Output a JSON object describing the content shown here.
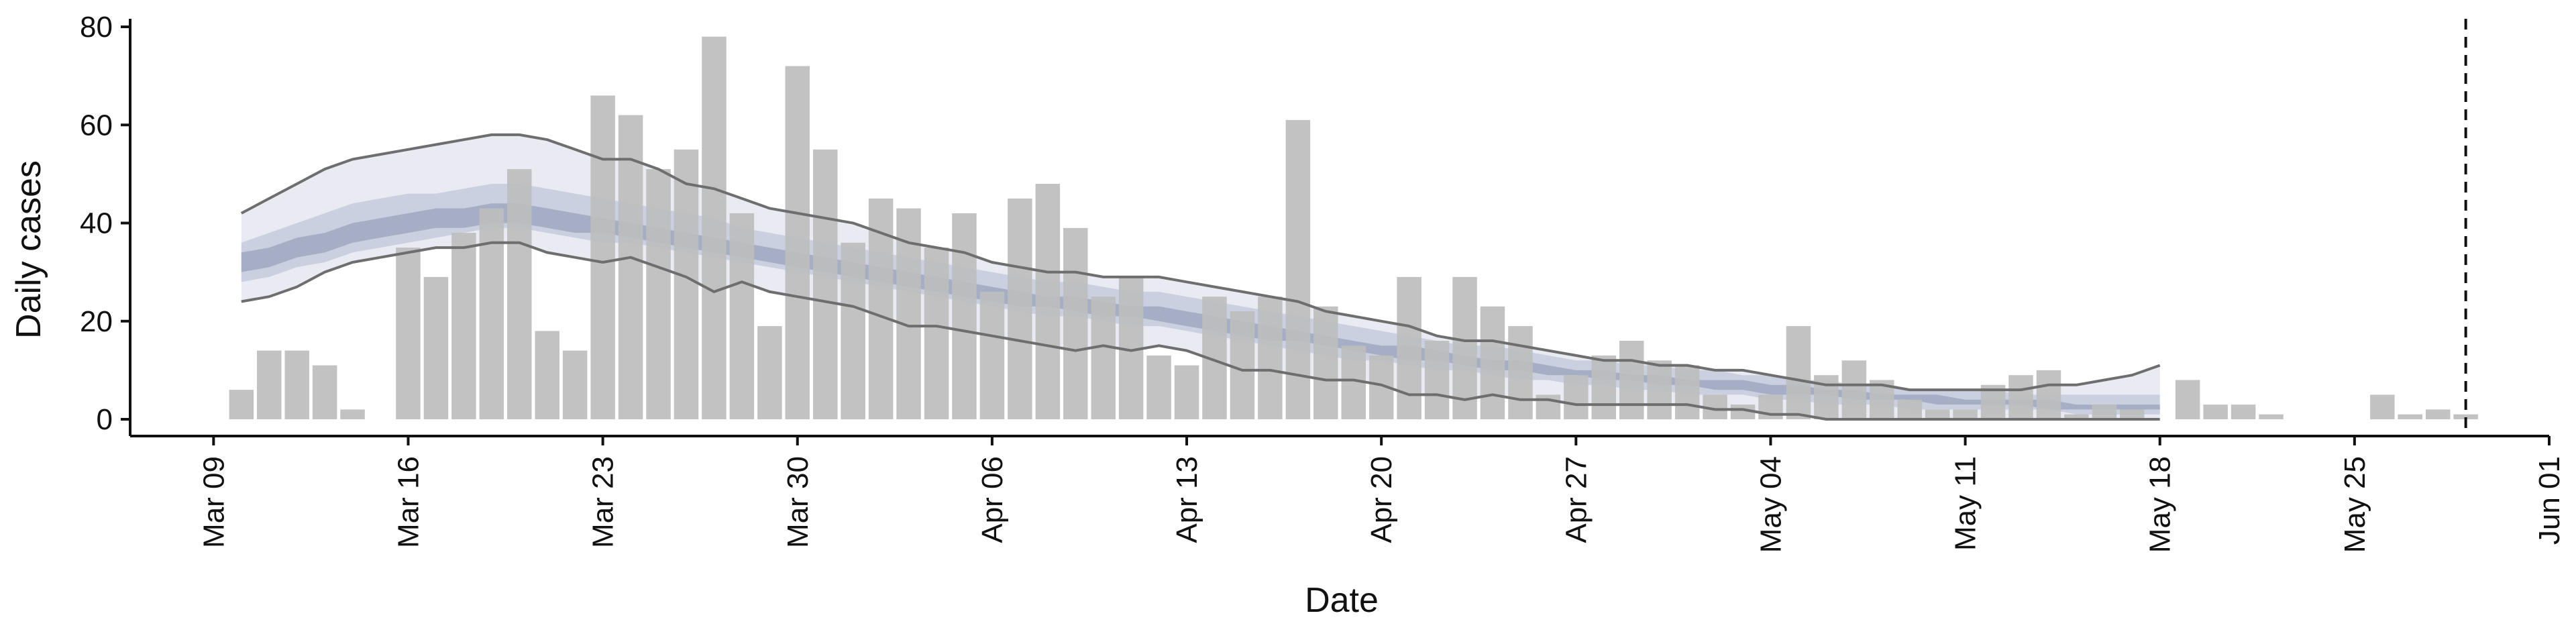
{
  "chart_data": {
    "type": "bar",
    "xlabel": "Date",
    "ylabel": "Daily cases",
    "ylim": [
      0,
      80
    ],
    "x_range": [
      "2020-03-06",
      "2020-06-01"
    ],
    "x_ticks": [
      "2020-03-09",
      "2020-03-16",
      "2020-03-23",
      "2020-03-30",
      "2020-04-06",
      "2020-04-13",
      "2020-04-20",
      "2020-04-27",
      "2020-05-04",
      "2020-05-11",
      "2020-05-18",
      "2020-05-25",
      "2020-06-01"
    ],
    "x_tick_labels": [
      "Mar 09",
      "Mar 16",
      "Mar 23",
      "Mar 30",
      "Apr 06",
      "Apr 13",
      "Apr 20",
      "Apr 27",
      "May 04",
      "May 11",
      "May 18",
      "May 25",
      "Jun 01"
    ],
    "y_ticks": [
      0,
      20,
      40,
      60,
      80
    ],
    "y_tick_labels": [
      "0",
      "20",
      "40",
      "60",
      "80"
    ],
    "grid": false,
    "colors": {
      "bars": "#bdbdbd",
      "outer_band": "#e9eaf2",
      "inner_band": "#c5cbdd",
      "core_band": "#9aa3bc",
      "bound_lines": "#6e6e6e",
      "axes": "#111111"
    },
    "series": [
      {
        "kind": "bars",
        "start_date": "2020-03-10",
        "values": [
          6,
          14,
          14,
          11,
          2,
          0,
          35,
          29,
          38,
          43,
          51,
          18,
          14,
          66,
          62,
          51,
          55,
          78,
          42,
          19,
          72,
          55,
          36,
          45,
          43,
          35,
          42,
          26,
          45,
          48,
          39,
          25,
          29,
          13,
          11,
          25,
          22,
          25,
          61,
          23,
          15,
          13,
          29,
          16,
          29,
          23,
          19,
          5,
          9,
          13,
          16,
          12,
          11,
          5,
          3,
          5,
          19,
          9,
          12,
          8,
          4,
          2,
          2,
          7,
          9,
          10,
          1,
          3,
          2,
          0,
          8,
          3,
          3,
          1,
          0,
          0,
          0,
          5,
          1,
          2,
          1
        ]
      },
      {
        "kind": "band_outer",
        "start_date": "2020-03-10",
        "upper": [
          42,
          45,
          48,
          51,
          53,
          54,
          55,
          56,
          57,
          58,
          58,
          57,
          55,
          53,
          53,
          51,
          48,
          47,
          45,
          43,
          42,
          41,
          40,
          38,
          36,
          35,
          34,
          32,
          31,
          30,
          30,
          29,
          29,
          29,
          28,
          27,
          26,
          25,
          24,
          22,
          21,
          20,
          19,
          17,
          16,
          16,
          15,
          14,
          13,
          12,
          12,
          11,
          11,
          10,
          10,
          9,
          8,
          7,
          7,
          7,
          6,
          6,
          6,
          6,
          6,
          7,
          7,
          8,
          9,
          11
        ],
        "lower": [
          24,
          25,
          27,
          30,
          32,
          33,
          34,
          35,
          35,
          36,
          36,
          34,
          33,
          32,
          33,
          31,
          29,
          26,
          28,
          26,
          25,
          24,
          23,
          21,
          19,
          19,
          18,
          17,
          16,
          15,
          14,
          15,
          14,
          15,
          14,
          12,
          10,
          10,
          9,
          8,
          8,
          7,
          5,
          5,
          4,
          5,
          4,
          4,
          3,
          3,
          3,
          3,
          3,
          2,
          2,
          1,
          1,
          0,
          0,
          0,
          0,
          0,
          0,
          0,
          0,
          0,
          0,
          0,
          0,
          0
        ]
      },
      {
        "kind": "band_inner",
        "start_date": "2020-03-10",
        "upper": [
          36,
          38,
          40,
          42,
          44,
          45,
          46,
          46,
          47,
          48,
          48,
          47,
          46,
          45,
          44,
          43,
          42,
          41,
          39,
          38,
          37,
          36,
          35,
          34,
          33,
          32,
          31,
          30,
          29,
          28,
          28,
          27,
          26,
          26,
          25,
          24,
          23,
          22,
          21,
          20,
          19,
          18,
          17,
          16,
          15,
          15,
          14,
          13,
          12,
          12,
          11,
          11,
          10,
          10,
          9,
          9,
          8,
          8,
          7,
          7,
          6,
          6,
          6,
          6,
          5,
          5,
          5,
          5,
          5,
          5
        ],
        "lower": [
          28,
          29,
          31,
          32,
          34,
          35,
          36,
          37,
          38,
          39,
          39,
          38,
          37,
          36,
          36,
          35,
          34,
          33,
          32,
          31,
          30,
          29,
          28,
          27,
          26,
          25,
          24,
          23,
          22,
          21,
          21,
          20,
          19,
          19,
          18,
          17,
          16,
          15,
          14,
          13,
          12,
          12,
          11,
          10,
          10,
          9,
          8,
          8,
          7,
          7,
          6,
          6,
          5,
          5,
          5,
          4,
          4,
          3,
          3,
          3,
          2,
          2,
          2,
          2,
          2,
          2,
          1,
          1,
          1,
          1
        ]
      },
      {
        "kind": "band_core",
        "start_date": "2020-03-10",
        "upper": [
          34,
          35,
          37,
          38,
          40,
          41,
          42,
          43,
          43,
          44,
          44,
          43,
          42,
          41,
          40,
          39,
          38,
          37,
          36,
          35,
          34,
          33,
          32,
          31,
          30,
          29,
          28,
          27,
          26,
          25,
          25,
          24,
          23,
          23,
          22,
          21,
          20,
          19,
          18,
          17,
          16,
          15,
          15,
          14,
          13,
          12,
          12,
          11,
          10,
          10,
          9,
          9,
          8,
          8,
          8,
          7,
          7,
          6,
          6,
          5,
          5,
          5,
          4,
          4,
          4,
          4,
          3,
          3,
          3,
          3
        ],
        "lower": [
          30,
          31,
          33,
          34,
          36,
          37,
          38,
          39,
          39,
          40,
          40,
          39,
          38,
          38,
          37,
          36,
          35,
          34,
          33,
          32,
          31,
          30,
          29,
          28,
          27,
          26,
          25,
          24,
          23,
          23,
          22,
          21,
          21,
          20,
          19,
          18,
          17,
          16,
          16,
          15,
          14,
          13,
          12,
          12,
          11,
          10,
          10,
          9,
          9,
          8,
          8,
          7,
          7,
          6,
          6,
          5,
          5,
          5,
          4,
          4,
          4,
          3,
          3,
          3,
          3,
          2,
          2,
          2,
          2,
          2
        ]
      }
    ],
    "vertical_marker": "2020-05-29"
  }
}
